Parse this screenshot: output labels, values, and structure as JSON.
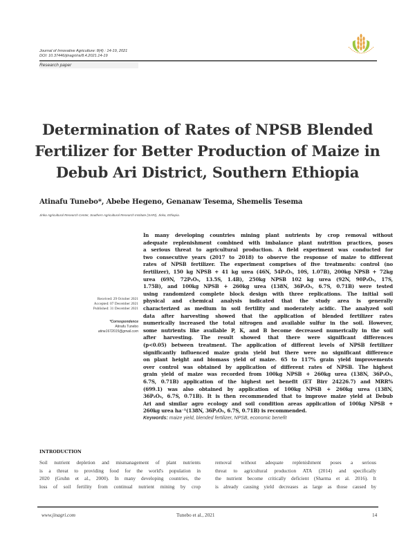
{
  "header": {
    "journal_line": "Journal of Innovative Agriculture: 8(4) : 14-19, 2021",
    "doi_line": "DOI: 10.37446/jinagri/ra/8.4.2021.14-19",
    "article_type": "Research paper",
    "logo": "journal-wheat-logo"
  },
  "title_lines": [
    "Determination of Rates of NPSB Blended",
    "Fertilizer for Better Production of Maize in",
    "Debub Ari District, Southern Ethiopia"
  ],
  "authors": "Atinafu Tunebo*, Abebe Hegeno, Genanaw Tesema, Shemelis Tesema",
  "affiliation": "Jinka Agricultural Research Center, Southern Agricultural Research Institute (SARI), Jinka, Ethiopia.",
  "dates": {
    "received": "Received: 29 October 2021",
    "accepted": "Accepted: 07 December 2021",
    "published": "Published: 31 December 2021"
  },
  "correspondence": {
    "label": "*Correspondence",
    "name": "Atinafu Tunebo",
    "email": "atine1672015@gmail.com"
  },
  "abstract_lines": [
    "In many developing countries mining plant nutrients by crop removal without",
    "adequate replenishment combined with imbalance plant nutrition practices, poses",
    "a serious threat to agricultural production. A field experiment was conducted for",
    "two consecutive years (2017 to 2018) to observe the response of maize to different",
    "rates of NPSB fertilizer. The experiment comprises of five treatments: control (no",
    "fertilizer), 150 kg NPSB + 41 kg urea (46N, 54P₂O₅, 10S, 1.07B), 200kg NPSB + 72kg",
    "urea (69N, 72P₂O₅, 13.5S, 1.4B), 250kg NPSB 102 kg urea (92N, 90P₂O₅, 17S,",
    "1.75B), and 100kg NPSB + 260kg urea (138N, 36P₂O₅, 6.7S, 0.71B) were tested",
    "using randomized complete block design with three replications. The initial soil",
    "physical and chemical analysis indicated that the study area is generally",
    "characterized as medium in soil fertility and moderately acidic. The analyzed soil",
    "data after harvesting showed that the application of blended fertilizer rates",
    "numerically increased the total nitrogen and available sulfur in the soil. However,",
    "some nutrients like available P, K, and B become decreased numerically in the soil",
    "after harvesting. The result showed that there were significant differences",
    "(p<0.05) between treatment. The application of different levels of NPSB fertilizer",
    "significantly influenced maize grain yield but there were no significant difference",
    "on plant height and biomass yield of maize. 65 to 117% grain yield improvements",
    "over control was obtained by application of different rates of NPSB. The highest",
    "grain yield of maize was recorded from 100kg NPSB + 260kg urea (138N, 36P₂O₅,",
    "6.7S, 0.71B) application of the highest net benefit (ET Birr 24226.7) and MRR%",
    "(699.1) was also obtained by application of 100kg NPSB + 260kg urea (138N,",
    "36P₂O₅, 6.7S, 0.71B). It is then recommended that to improve maize yield at Debub",
    "Ari and similar agro ecology and soil condition areas application of 100kg NPSB +",
    "260kg urea ha⁻¹(138N, 36P₂O₅, 6.7S, 0.71B) is recommended."
  ],
  "keywords": {
    "label": "Keywords:",
    "text": "maize yield, blended fertilizer, NPSB, economic benefit"
  },
  "introduction": {
    "heading": "INTRODUCTION",
    "left_lines": [
      "Soil nutrient depletion and mismanagement of plant nutrients",
      "is a threat to providing food for the world's population in",
      "2020 (Gruhn et al., 2000). In many developing countries, the",
      "loss of soil fertility from continual nutrient mining by crop"
    ],
    "right_lines": [
      "removal without adequate replenishment poses a serious",
      "threat to agricultural production ATA (2014) and specifically",
      "the nutrient become critically deficient (Sharma et al. 2016). It",
      "is already causing yield decreases as large as those caused by"
    ]
  },
  "footer": {
    "website": "www.jinagri.com",
    "citation": "Tunebo et al., 2021",
    "page_number": "14"
  }
}
